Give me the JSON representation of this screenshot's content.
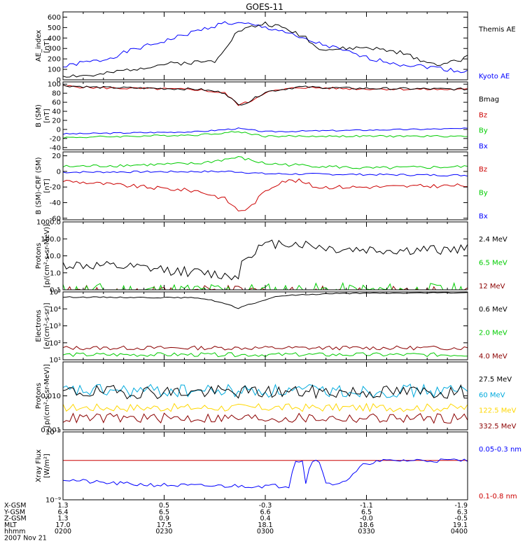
{
  "title": "GOES-11",
  "colors": {
    "blue": "#0000ff",
    "green": "#00cc00",
    "red": "#cc0000",
    "darkred": "#8b0000",
    "black": "#000000",
    "yellow": "#ffd700",
    "cyan": "#00aadd"
  },
  "chart_data": [
    {
      "type": "line",
      "ylabel_lines": [
        "AE_index",
        "[nT]"
      ],
      "ylim": [
        0,
        650
      ],
      "scale": "linear",
      "yticks": [
        0,
        100,
        200,
        300,
        400,
        500,
        600
      ],
      "ytick_labels": [
        "0",
        "100",
        "200",
        "300",
        "400",
        "500",
        "600"
      ],
      "series": [
        {
          "name": "Kyoto AE",
          "color": "blue",
          "gen": {
            "base": [
              [
                0,
                120
              ],
              [
                5,
                160
              ],
              [
                12,
                190
              ],
              [
                20,
                280
              ],
              [
                30,
                370
              ],
              [
                40,
                470
              ],
              [
                48,
                545
              ],
              [
                55,
                530
              ],
              [
                60,
                500
              ],
              [
                65,
                470
              ],
              [
                70,
                400
              ],
              [
                80,
                310
              ],
              [
                90,
                210
              ],
              [
                100,
                150
              ],
              [
                110,
                120
              ],
              [
                118,
                80
              ],
              [
                120,
                90
              ]
            ],
            "amp": 20,
            "seed": 1
          }
        },
        {
          "name": "Themis AE",
          "color": "black",
          "gen": {
            "base": [
              [
                0,
                40
              ],
              [
                10,
                40
              ],
              [
                20,
                100
              ],
              [
                30,
                150
              ],
              [
                40,
                170
              ],
              [
                45,
                180
              ],
              [
                49,
                350
              ],
              [
                52,
                470
              ],
              [
                60,
                540
              ],
              [
                65,
                500
              ],
              [
                72,
                410
              ],
              [
                75,
                310
              ],
              [
                80,
                290
              ],
              [
                90,
                310
              ],
              [
                100,
                260
              ],
              [
                110,
                150
              ],
              [
                118,
                180
              ],
              [
                120,
                250
              ]
            ],
            "amp": 20,
            "seed": 2
          }
        }
      ]
    },
    {
      "type": "line",
      "ylabel_lines": [
        "B (SM)",
        "[nT]"
      ],
      "ylim": [
        -45,
        105
      ],
      "scale": "linear",
      "yticks": [
        -40,
        -20,
        0,
        20,
        40,
        60,
        80,
        100
      ],
      "ytick_labels": [
        "-40",
        "-20",
        "0",
        "20",
        "40",
        "60",
        "80",
        "100"
      ],
      "series": [
        {
          "name": "Bx",
          "color": "blue",
          "gen": {
            "base": [
              [
                0,
                -10
              ],
              [
                40,
                -5
              ],
              [
                52,
                2
              ],
              [
                60,
                -5
              ],
              [
                120,
                2
              ]
            ],
            "amp": 1.5,
            "seed": 3
          }
        },
        {
          "name": "By",
          "color": "green",
          "gen": {
            "base": [
              [
                0,
                -18
              ],
              [
                40,
                -12
              ],
              [
                52,
                -5
              ],
              [
                60,
                -15
              ],
              [
                120,
                -15
              ]
            ],
            "amp": 2,
            "seed": 4
          }
        },
        {
          "name": "Bz",
          "color": "red",
          "gen": {
            "base": [
              [
                0,
                96
              ],
              [
                10,
                92
              ],
              [
                40,
                88
              ],
              [
                48,
                80
              ],
              [
                52,
                55
              ],
              [
                55,
                60
              ],
              [
                60,
                82
              ],
              [
                70,
                93
              ],
              [
                85,
                90
              ],
              [
                120,
                88
              ]
            ],
            "amp": 2.5,
            "seed": 5
          }
        },
        {
          "name": "Bmag",
          "color": "black",
          "gen": {
            "base": [
              [
                0,
                97
              ],
              [
                10,
                93
              ],
              [
                40,
                89
              ],
              [
                48,
                81
              ],
              [
                52,
                54
              ],
              [
                55,
                61
              ],
              [
                60,
                83
              ],
              [
                70,
                94
              ],
              [
                85,
                91
              ],
              [
                120,
                89
              ]
            ],
            "amp": 2.5,
            "seed": 6
          }
        }
      ]
    },
    {
      "type": "line",
      "ylabel_lines": [
        "B (SM)-CRF (SM)",
        "[nT]"
      ],
      "ylim": [
        -62,
        25
      ],
      "scale": "linear",
      "yticks": [
        -60,
        -40,
        -20,
        0,
        20
      ],
      "ytick_labels": [
        "-60",
        "-40",
        "-20",
        "0",
        "20"
      ],
      "series": [
        {
          "name": "Bx",
          "color": "blue",
          "gen": {
            "base": [
              [
                0,
                -1
              ],
              [
                50,
                0
              ],
              [
                60,
                -3
              ],
              [
                120,
                -5
              ]
            ],
            "amp": 1.2,
            "seed": 7
          }
        },
        {
          "name": "By",
          "color": "green",
          "gen": {
            "base": [
              [
                0,
                6
              ],
              [
                40,
                10
              ],
              [
                52,
                18
              ],
              [
                60,
                10
              ],
              [
                90,
                4
              ],
              [
                120,
                6
              ]
            ],
            "amp": 2,
            "seed": 8
          }
        },
        {
          "name": "Bz",
          "color": "red",
          "gen": {
            "base": [
              [
                0,
                -12
              ],
              [
                30,
                -22
              ],
              [
                40,
                -25
              ],
              [
                48,
                -35
              ],
              [
                52,
                -50
              ],
              [
                55,
                -48
              ],
              [
                60,
                -25
              ],
              [
                65,
                -12
              ],
              [
                70,
                -12
              ],
              [
                75,
                -20
              ],
              [
                90,
                -20
              ],
              [
                120,
                -18
              ]
            ],
            "amp": 2.5,
            "seed": 9
          }
        }
      ]
    },
    {
      "type": "line",
      "ylabel_lines": [
        "Protons",
        "[p/(cm²-s-sr-MeV)]"
      ],
      "ylim": [
        0.1,
        1000
      ],
      "scale": "log",
      "yticks": [
        0.1,
        1,
        10,
        100,
        1000
      ],
      "ytick_labels": [
        "0.1",
        "1.0",
        "10.0",
        "100.0",
        "1000.0"
      ],
      "series": [
        {
          "name": "12 MeV",
          "color": "darkred",
          "gen": {
            "base": [
              [
                0,
                0.08
              ],
              [
                120,
                0.08
              ]
            ],
            "logamp": 0.35,
            "seed": 10
          }
        },
        {
          "name": "6.5 MeV",
          "color": "green",
          "gen": {
            "base": [
              [
                0,
                0.09
              ],
              [
                120,
                0.09
              ]
            ],
            "logamp": 0.45,
            "seed": 11
          }
        },
        {
          "name": "2.4 MeV",
          "color": "black",
          "gen": {
            "base": [
              [
                0,
                3
              ],
              [
                20,
                2
              ],
              [
                40,
                1
              ],
              [
                50,
                0.6
              ],
              [
                52,
                0.8
              ],
              [
                55,
                10
              ],
              [
                60,
                40
              ],
              [
                65,
                60
              ],
              [
                70,
                50
              ],
              [
                80,
                25
              ],
              [
                100,
                20
              ],
              [
                120,
                25
              ]
            ],
            "logamp": 0.3,
            "seed": 12
          }
        }
      ]
    },
    {
      "type": "line",
      "ylabel_lines": [
        "Electrons",
        "[e/(cm²-s-sr)]"
      ],
      "ylim": [
        10,
        100000
      ],
      "scale": "log",
      "yticks": [
        10,
        100,
        1000,
        10000,
        100000
      ],
      "ytick_labels": [
        "10¹",
        "10²",
        "10³",
        "10⁴",
        "10⁵"
      ],
      "series": [
        {
          "name": "4.0 MeV",
          "color": "darkred",
          "gen": {
            "base": [
              [
                0,
                50
              ],
              [
                120,
                50
              ]
            ],
            "logamp": 0.12,
            "seed": 13
          }
        },
        {
          "name": "2.0 MeV",
          "color": "green",
          "gen": {
            "base": [
              [
                0,
                20
              ],
              [
                120,
                20
              ]
            ],
            "logamp": 0.12,
            "seed": 14
          }
        },
        {
          "name": "0.6 MeV",
          "color": "black",
          "gen": {
            "base": [
              [
                0,
                50000
              ],
              [
                40,
                45000
              ],
              [
                48,
                20000
              ],
              [
                52,
                10000
              ],
              [
                58,
                25000
              ],
              [
                65,
                60000
              ],
              [
                80,
                80000
              ],
              [
                120,
                90000
              ]
            ],
            "logamp": 0.03,
            "seed": 15
          }
        }
      ]
    },
    {
      "type": "line",
      "ylabel_lines": [
        "Protons",
        "[p/(cm²-s-sr-MeV)]"
      ],
      "ylim": [
        0.001,
        0.1
      ],
      "scale": "log",
      "yticks": [
        0.001,
        0.01
      ],
      "ytick_labels": [
        "0.001",
        "0.010"
      ],
      "series": [
        {
          "name": "332.5 MeV",
          "color": "darkred",
          "gen": {
            "base": [
              [
                0,
                0.0022
              ],
              [
                120,
                0.0022
              ]
            ],
            "logamp": 0.15,
            "seed": 16
          }
        },
        {
          "name": "122.5 MeV",
          "color": "yellow",
          "gen": {
            "base": [
              [
                0,
                0.0045
              ],
              [
                120,
                0.0045
              ]
            ],
            "logamp": 0.12,
            "seed": 17
          }
        },
        {
          "name": "60 MeV",
          "color": "cyan",
          "gen": {
            "base": [
              [
                0,
                0.014
              ],
              [
                120,
                0.014
              ]
            ],
            "logamp": 0.2,
            "seed": 18
          }
        },
        {
          "name": "27.5 MeV",
          "color": "black",
          "gen": {
            "base": [
              [
                0,
                0.013
              ],
              [
                120,
                0.013
              ]
            ],
            "logamp": 0.2,
            "seed": 19
          }
        }
      ]
    },
    {
      "type": "line",
      "ylabel_lines": [
        "Xray Flux",
        "[W/m²]"
      ],
      "ylim": [
        1e-09,
        1e-08
      ],
      "scale": "log",
      "yticks": [
        1e-09,
        1e-08
      ],
      "ytick_labels": [
        "10⁻⁹",
        "10⁻⁸"
      ],
      "series": [
        {
          "name": "0.1-0.8 nm",
          "color": "red",
          "gen": {
            "base": [
              [
                0,
                3.8e-09
              ],
              [
                120,
                3.8e-09
              ]
            ],
            "logamp": 0,
            "seed": 20
          }
        },
        {
          "name": "0.05-0.3 nm",
          "color": "blue",
          "gen": {
            "base": [
              [
                0,
                2e-09
              ],
              [
                10,
                1.8e-09
              ],
              [
                20,
                1.7e-09
              ],
              [
                40,
                1.6e-09
              ],
              [
                67,
                1.6e-09
              ],
              [
                69,
                3.8e-09
              ],
              [
                71,
                3.8e-09
              ],
              [
                72,
                1.8e-09
              ],
              [
                74,
                3.8e-09
              ],
              [
                76,
                3.8e-09
              ],
              [
                78,
                1.7e-09
              ],
              [
                80,
                1.7e-09
              ],
              [
                85,
                2e-09
              ],
              [
                90,
                3.5e-09
              ],
              [
                95,
                3.7e-09
              ],
              [
                100,
                3.8e-09
              ],
              [
                120,
                3.8e-09
              ]
            ],
            "logamp": 0.03,
            "seed": 21
          }
        }
      ]
    }
  ],
  "x_axis": {
    "range": [
      0,
      120
    ],
    "major_ticks": [
      0,
      30,
      60,
      90,
      120
    ],
    "minor_step": 6
  },
  "ephemeris": {
    "row_labels": [
      "X-GSM",
      "Y-GSM",
      "Z-GSM",
      "MLT",
      "hhmm"
    ],
    "columns": [
      [
        "1.3",
        "6.4",
        "1.3",
        "17.0",
        "0200"
      ],
      [
        "0.5",
        "6.5",
        "0.9",
        "17.5",
        "0230"
      ],
      [
        "-0.3",
        "6.6",
        "0.4",
        "18.1",
        "0300"
      ],
      [
        "-1.1",
        "6.5",
        "-0.0",
        "18.6",
        "0330"
      ],
      [
        "-1.9",
        "6.3",
        "-0.5",
        "19.1",
        "0400"
      ]
    ],
    "date": "2007 Nov 21"
  }
}
